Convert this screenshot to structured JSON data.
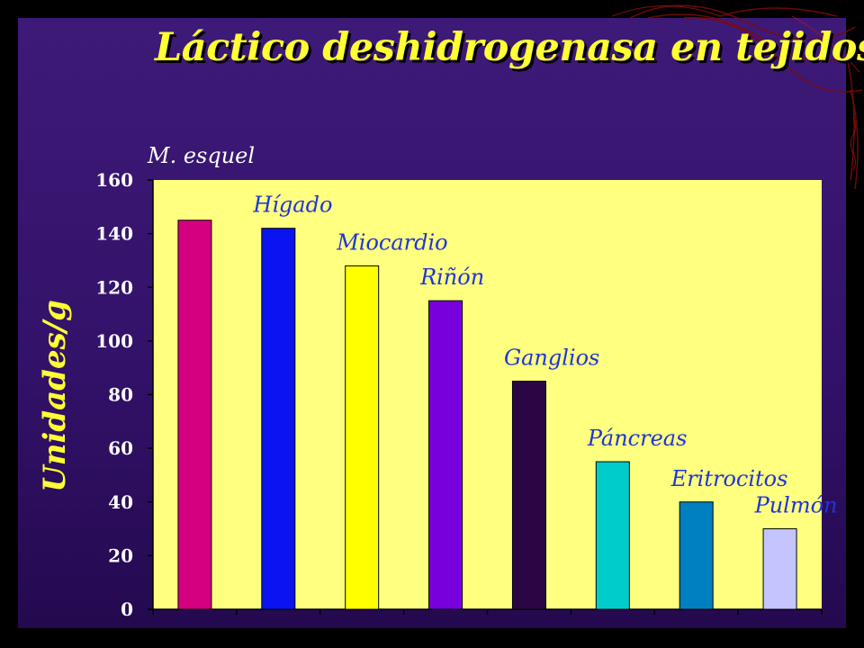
{
  "chart_data": {
    "type": "bar",
    "title": "Láctico deshidrogenasa en tejidos",
    "ylabel": "Unidades/g",
    "xlabel": "",
    "ylim": [
      0,
      160
    ],
    "yticks": [
      0,
      20,
      40,
      60,
      80,
      100,
      120,
      140,
      160
    ],
    "grid": false,
    "categories": [
      "M. esquel",
      "Hígado",
      "Miocardio",
      "Riñón",
      "Ganglios",
      "Páncreas",
      "Eritrocitos",
      "Pulmón"
    ],
    "values": [
      145,
      142,
      128,
      115,
      85,
      55,
      40,
      30
    ],
    "colors": [
      "#d4007f",
      "#0a14f0",
      "#ffff00",
      "#7700dd",
      "#2a0645",
      "#00cccc",
      "#0080c0",
      "#c4c4ff"
    ],
    "plot_background": "#ffff80"
  },
  "theme": {
    "background": "#000000",
    "panel": "#3a1775",
    "title_color": "#ffff33",
    "label_color": "#1f35d6"
  }
}
